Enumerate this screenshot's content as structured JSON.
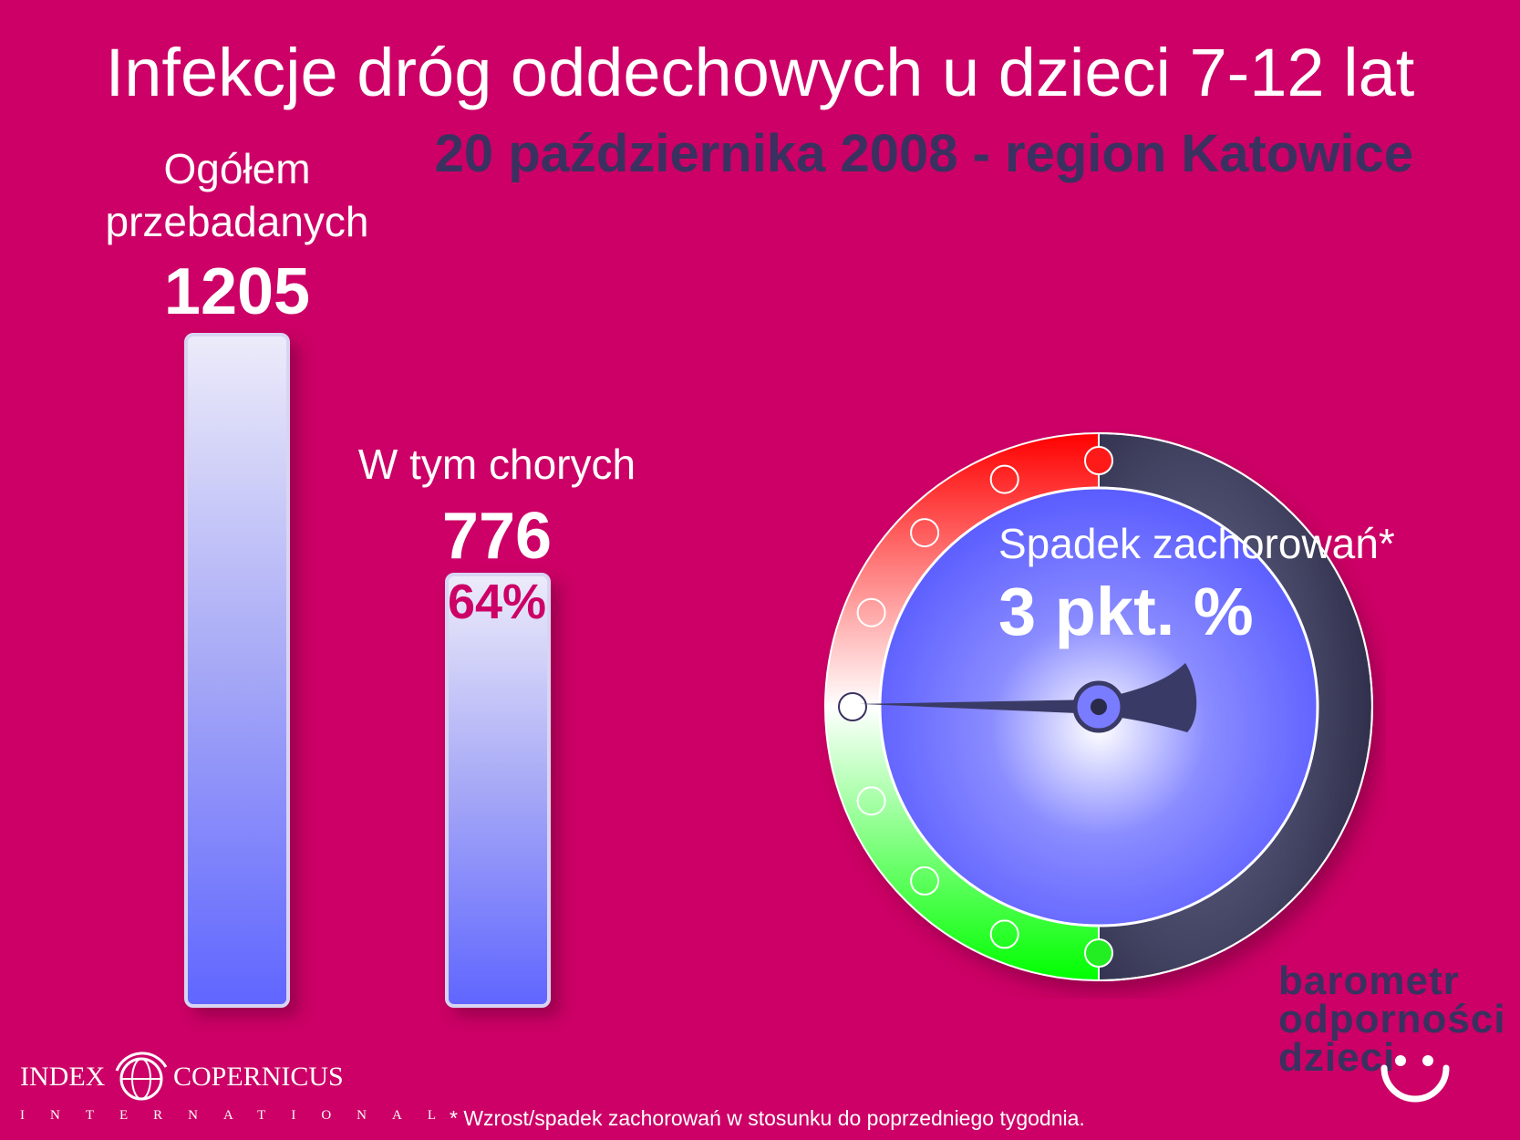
{
  "header": {
    "title": "Infekcje dróg oddechowych u dzieci 7-12 lat",
    "subtitle": "20 października 2008 - region Katowice"
  },
  "chart_data": {
    "type": "bar",
    "categories": [
      "Ogółem przebadanych",
      "W tym chorych"
    ],
    "values": [
      1205,
      776
    ],
    "value_labels": [
      "1205",
      "776"
    ],
    "labels": [
      [
        "Ogółem",
        "przebadanych"
      ],
      [
        "W tym chorych"
      ]
    ],
    "percent_label": "64%",
    "colors": {
      "bar_top": "#ecebfa",
      "bar_bottom": "#6066ff",
      "background": "#cc0066"
    }
  },
  "gauge": {
    "caption": "Spadek zachorowań*",
    "value_label": "3 pkt. %",
    "value": -3,
    "ticks": 9,
    "colors": {
      "rise": "#ff1a1a",
      "fall": "#22ff22",
      "dial": "#6a6cff",
      "rim": "#3a3a5a"
    }
  },
  "brand": {
    "lines": [
      "barometr",
      "odporności",
      "dzieci"
    ]
  },
  "logo": {
    "left": "INDEX",
    "right": "COPERNICUS",
    "sub": "INTERNATIONAL"
  },
  "footnote": "* Wzrost/spadek zachorowań w stosunku do poprzedniego tygodnia."
}
